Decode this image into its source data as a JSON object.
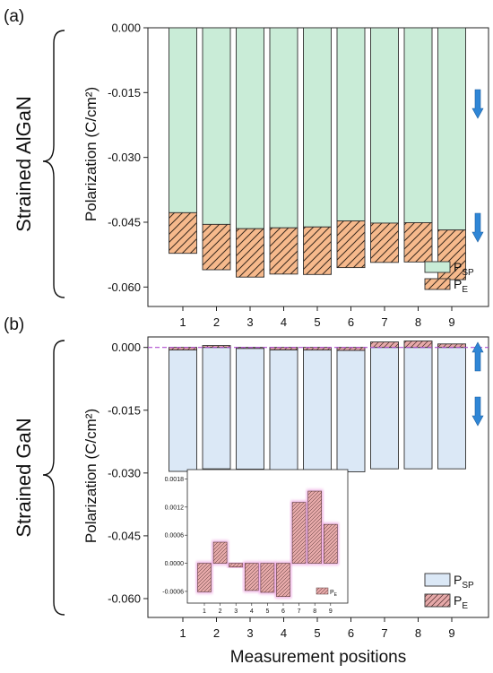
{
  "chart_data": [
    {
      "type": "bar",
      "stacked": true,
      "panel_label": "(a)",
      "side_label": "Strained AlGaN",
      "ylabel": "Polarization (C/cm²)",
      "ylim": [
        -0.0645,
        0
      ],
      "yticks": [
        "0.000",
        "-0.015",
        "-0.030",
        "-0.045",
        "-0.060"
      ],
      "categories": [
        "1",
        "2",
        "3",
        "4",
        "5",
        "6",
        "7",
        "8",
        "9"
      ],
      "series": [
        {
          "name": "P_SP",
          "legend_main": "P",
          "legend_sub": "SP",
          "color": "#c9ecd7",
          "values": [
            -0.0428,
            -0.0455,
            -0.0465,
            -0.0463,
            -0.0461,
            -0.0447,
            -0.0452,
            -0.0451,
            -0.0468
          ]
        },
        {
          "name": "P_E",
          "legend_main": "P",
          "legend_sub": "E",
          "color": "#f6b98c",
          "values": [
            -0.0094,
            -0.0105,
            -0.0112,
            -0.0107,
            -0.011,
            -0.0108,
            -0.0091,
            -0.0091,
            -0.0115
          ]
        }
      ],
      "arrows": [
        "down",
        "down"
      ],
      "legend_position": "bottom-right"
    },
    {
      "type": "bar",
      "stacked": false,
      "panel_label": "(b)",
      "side_label": "Strained GaN",
      "ylabel": "Polarization (C/cm²)",
      "xlabel": "Measurement positions",
      "ylim": [
        -0.0645,
        0.0025
      ],
      "yticks": [
        "0.000",
        "-0.015",
        "-0.030",
        "-0.045",
        "-0.060"
      ],
      "categories": [
        "1",
        "2",
        "3",
        "4",
        "5",
        "6",
        "7",
        "8",
        "9"
      ],
      "series": [
        {
          "name": "P_SP",
          "legend_main": "P",
          "legend_sub": "SP",
          "color": "#dbe8f6",
          "values": [
            -0.029,
            -0.029,
            -0.029,
            -0.029,
            -0.029,
            -0.029,
            -0.029,
            -0.029,
            -0.029
          ]
        },
        {
          "name": "P_E",
          "legend_main": "P",
          "legend_sub": "E",
          "color": "#e6a9a9",
          "values": [
            -0.00061,
            0.00045,
            -8e-05,
            -0.00058,
            -0.00062,
            -0.00071,
            0.0013,
            0.00154,
            0.00083
          ]
        }
      ],
      "arrows": [
        "up",
        "down"
      ],
      "legend_position": "bottom-right",
      "inset": {
        "ylim": [
          -0.00085,
          0.002
        ],
        "yticks": [
          "0.0018",
          "0.0012",
          "0.0006",
          "0.0000",
          "-0.0006"
        ],
        "legend_main": "P",
        "legend_sub": "E"
      }
    }
  ],
  "colors": {
    "arrow": "#2f86d6",
    "zero_line": "#b04fd0",
    "bar_edge": "#333333",
    "inset_glow": "#e98fd9"
  }
}
